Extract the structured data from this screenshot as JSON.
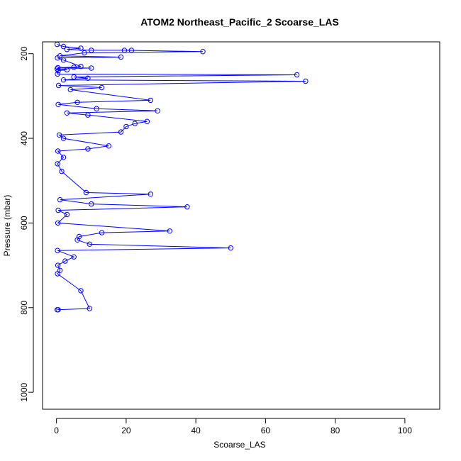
{
  "chart_data": {
    "type": "line",
    "title": "ATOM2 Northeast_Pacific_2 Scoarse_LAS",
    "xlabel": "Scoarse_LAS",
    "ylabel": "Pressure (mbar)",
    "xlim": [
      -4,
      110
    ],
    "ylim": [
      1040,
      172
    ],
    "y_reversed": true,
    "grid": false,
    "legend": "none",
    "colors": {
      "series": "#0000ff",
      "axis": "#000000"
    },
    "x_ticks": [
      0,
      20,
      40,
      60,
      80,
      100
    ],
    "y_ticks": [
      200,
      400,
      600,
      800,
      1000
    ],
    "series": [
      {
        "marker": "open-circle",
        "x": [
          0.2,
          2.0,
          7.0,
          3.0,
          10.0,
          21.5,
          42.0,
          19.5,
          8.0,
          1.0,
          0.3,
          2.0,
          18.5,
          5.0,
          0.4,
          0.2,
          3.0,
          7.0,
          10.0,
          0.5,
          0.3,
          5.0,
          69.0,
          71.5,
          9.0,
          2.0,
          13.0,
          0.6,
          4.0,
          27.0,
          6.0,
          29.0,
          11.5,
          0.5,
          3.0,
          9.0,
          26.0,
          22.5,
          20.0,
          18.5,
          0.8,
          2.0,
          15.0,
          9.0,
          0.4,
          2.0,
          0.3,
          1.5,
          27.0,
          8.5,
          1.0,
          37.5,
          10.0,
          0.5,
          3.0,
          0.4,
          32.5,
          13.0,
          6.0,
          50.0,
          0.3,
          5.0,
          9.5,
          6.5,
          0.4,
          2.5,
          1.0,
          0.3,
          7.0,
          9.5,
          0.2,
          0.5
        ],
        "y": [
          178,
          183,
          187,
          190,
          192,
          192,
          195,
          192,
          198,
          205,
          210,
          215,
          208,
          232,
          233,
          236,
          238,
          230,
          234,
          240,
          248,
          255,
          250,
          265,
          258,
          262,
          280,
          275,
          285,
          310,
          315,
          335,
          330,
          320,
          340,
          345,
          360,
          365,
          372,
          385,
          392,
          400,
          418,
          425,
          430,
          445,
          460,
          478,
          532,
          528,
          545,
          562,
          555,
          570,
          580,
          600,
          619,
          623,
          640,
          659,
          665,
          680,
          650,
          632,
          700,
          690,
          712,
          720,
          760,
          802,
          805,
          805
        ]
      }
    ]
  }
}
